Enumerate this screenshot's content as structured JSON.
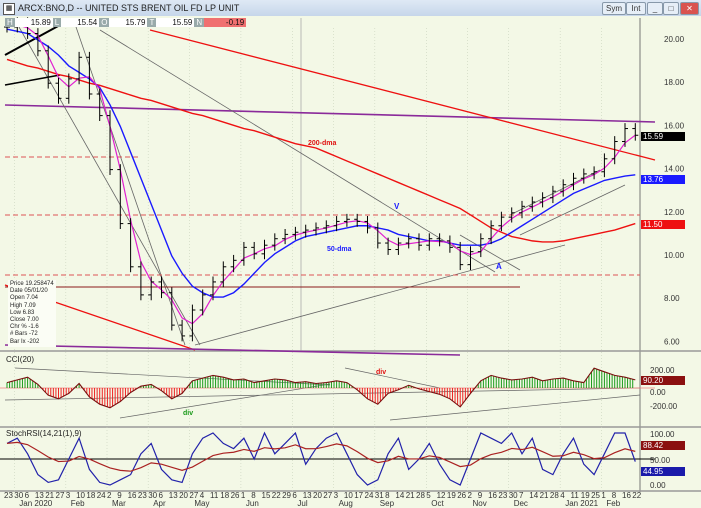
{
  "window": {
    "title": "ARCX:BNO,D -- UNITED STS BRENT OIL FD LP UNIT",
    "buttons": [
      "Sym",
      "Int",
      "_",
      "□",
      "✕"
    ]
  },
  "quote_bar": [
    {
      "key": "H",
      "value": "15.89"
    },
    {
      "key": "L",
      "value": "15.54"
    },
    {
      "key": "O",
      "value": "15.79"
    },
    {
      "key": "T",
      "value": "15.59"
    },
    {
      "key": "N",
      "value": "-0.19"
    }
  ],
  "data_window": [
    {
      "label": "Price",
      "value": "19.258474"
    },
    {
      "label": "Date",
      "value": "05/01/20"
    },
    {
      "label": "Open",
      "value": "7.04"
    },
    {
      "label": "High",
      "value": "7.09"
    },
    {
      "label": "Low",
      "value": "6.83"
    },
    {
      "label": "Close",
      "value": "7.00"
    },
    {
      "label": "Chr %",
      "value": "-1.6"
    },
    {
      "label": "# Bars",
      "value": "-72"
    },
    {
      "label": "Bar Ix",
      "value": "-202"
    }
  ],
  "annotations": {
    "dma200": "200-dma",
    "dma50": "50-dma",
    "v": "V",
    "a": "A",
    "div1": "div",
    "div2": "div"
  },
  "colors": {
    "price": "#000000",
    "ma_fast": "#e020d0",
    "dma50": "#1a1aff",
    "dma200": "#ee1111",
    "cci_pos": "#1a9a1a",
    "cci_neg": "#ee2222",
    "stoch": "#2222aa",
    "signal": "#aa2222",
    "bg": "#f3f8e6"
  },
  "chart_data": [
    {
      "type": "line",
      "title": "ARCX:BNO,D",
      "ylim": [
        5.5,
        21
      ],
      "yticks": [
        "20.00",
        "18.00",
        "16.00",
        "14.00",
        "12.00",
        "10.00",
        "8.00",
        "6.00"
      ],
      "grid": true,
      "x_start": "2019-12-23",
      "x_interval": "weekly",
      "series": [
        {
          "name": "ARCX:BNO",
          "last_label": "15.59",
          "values": [
            20.6,
            20.8,
            20.3,
            19.5,
            18.0,
            17.3,
            18.2,
            19.2,
            17.5,
            16.5,
            14.0,
            11.5,
            9.5,
            8.2,
            8.8,
            8.3,
            6.8,
            6.3,
            7.5,
            8.2,
            8.8,
            9.5,
            9.8,
            10.4,
            10.1,
            10.5,
            10.8,
            11.0,
            11.1,
            11.2,
            11.3,
            11.4,
            11.6,
            11.7,
            11.6,
            11.3,
            10.6,
            10.3,
            10.6,
            10.8,
            10.5,
            10.8,
            10.7,
            10.4,
            9.6,
            10.2,
            10.8,
            11.4,
            11.8,
            12.0,
            12.3,
            12.5,
            12.7,
            13.0,
            13.3,
            13.6,
            13.8,
            13.9,
            14.5,
            15.3,
            15.9,
            15.59
          ]
        },
        {
          "name": "50-dma",
          "last_label": "13.76",
          "values": [
            20.5,
            20.4,
            20.3,
            20.0,
            19.7,
            19.3,
            18.8,
            18.5,
            18.2,
            17.8,
            17.0,
            16.0,
            14.8,
            13.6,
            12.4,
            11.2,
            10.0,
            9.2,
            8.6,
            8.3,
            8.1,
            8.1,
            8.3,
            8.7,
            9.2,
            9.7,
            10.1,
            10.4,
            10.7,
            10.9,
            11.0,
            11.1,
            11.2,
            11.3,
            11.4,
            11.4,
            11.3,
            11.2,
            11.0,
            10.9,
            10.8,
            10.7,
            10.7,
            10.6,
            10.5,
            10.5,
            10.5,
            10.6,
            10.8,
            11.1,
            11.4,
            11.7,
            12.0,
            12.3,
            12.6,
            12.9,
            13.1,
            13.3,
            13.5,
            13.6,
            13.7,
            13.76
          ]
        },
        {
          "name": "200-dma",
          "last_label": "11.50",
          "values": [
            19.1,
            18.95,
            18.8,
            18.7,
            18.55,
            18.4,
            18.3,
            18.15,
            18.0,
            17.9,
            17.75,
            17.6,
            17.45,
            17.3,
            17.2,
            17.05,
            16.9,
            16.75,
            16.6,
            16.5,
            16.35,
            16.2,
            16.05,
            15.9,
            15.8,
            15.65,
            15.5,
            15.35,
            15.2,
            15.1,
            15.0,
            14.8,
            14.6,
            14.4,
            14.2,
            14.0,
            13.8,
            13.6,
            13.4,
            13.2,
            13.0,
            12.8,
            12.6,
            12.4,
            12.2,
            11.9,
            11.6,
            11.3,
            11.1,
            10.9,
            10.8,
            10.7,
            10.65,
            10.65,
            10.7,
            10.8,
            10.9,
            11.0,
            11.1,
            11.2,
            11.35,
            11.5
          ]
        }
      ]
    },
    {
      "type": "bar",
      "title": "CCI(20)",
      "ylim": [
        -300,
        300
      ],
      "yticks": [
        "200.00",
        "0.00",
        "-200.00"
      ],
      "last_label": "90.20",
      "values": [
        60,
        90,
        120,
        40,
        -80,
        -120,
        -60,
        50,
        -100,
        -180,
        -220,
        -150,
        -50,
        20,
        40,
        -30,
        -120,
        -60,
        80,
        110,
        140,
        120,
        90,
        100,
        60,
        80,
        100,
        90,
        60,
        70,
        50,
        60,
        80,
        60,
        -20,
        -120,
        -180,
        -60,
        -20,
        30,
        -10,
        -40,
        -70,
        -120,
        -210,
        -60,
        80,
        140,
        110,
        90,
        100,
        120,
        80,
        100,
        110,
        80,
        60,
        220,
        180,
        140,
        120,
        90.2
      ]
    },
    {
      "type": "line",
      "title": "StochRSI(14,21(1),9)",
      "ylim": [
        0,
        100
      ],
      "yticks": [
        "100.00",
        "50.00",
        "0.00"
      ],
      "series": [
        {
          "name": "StochRSI",
          "last_label": "44.95",
          "values": [
            80,
            90,
            60,
            20,
            5,
            10,
            50,
            90,
            30,
            5,
            0,
            10,
            20,
            60,
            80,
            30,
            10,
            5,
            60,
            90,
            100,
            80,
            70,
            90,
            50,
            100,
            60,
            80,
            100,
            40,
            70,
            90,
            100,
            60,
            20,
            0,
            10,
            60,
            90,
            30,
            50,
            80,
            40,
            10,
            0,
            50,
            100,
            90,
            80,
            100,
            60,
            90,
            30,
            20,
            60,
            90,
            40,
            20,
            60,
            100,
            100,
            44.95
          ]
        },
        {
          "name": "Signal",
          "last_label": "88.42"
        }
      ]
    }
  ],
  "x_axis": {
    "day_ticks": [
      "23",
      "30",
      "6",
      "13",
      "21",
      "27",
      "3",
      "10",
      "18",
      "24",
      "2",
      "9",
      "16",
      "23",
      "30",
      "6",
      "13",
      "20",
      "27",
      "4",
      "11",
      "18",
      "26",
      "1",
      "8",
      "15",
      "22",
      "29",
      "6",
      "13",
      "20",
      "27",
      "3",
      "10",
      "17",
      "24",
      "31",
      "8",
      "14",
      "21",
      "28",
      "5",
      "12",
      "19",
      "26",
      "2",
      "9",
      "16",
      "23",
      "30",
      "7",
      "14",
      "21",
      "28",
      "4",
      "11",
      "19",
      "25",
      "1",
      "8",
      "16",
      "22"
    ],
    "months": [
      "Jan 2020",
      "Feb",
      "Mar",
      "Apr",
      "May",
      "Jun",
      "Jul",
      "Aug",
      "Sep",
      "Oct",
      "Nov",
      "Dec",
      "Jan 2021",
      "Feb"
    ]
  }
}
